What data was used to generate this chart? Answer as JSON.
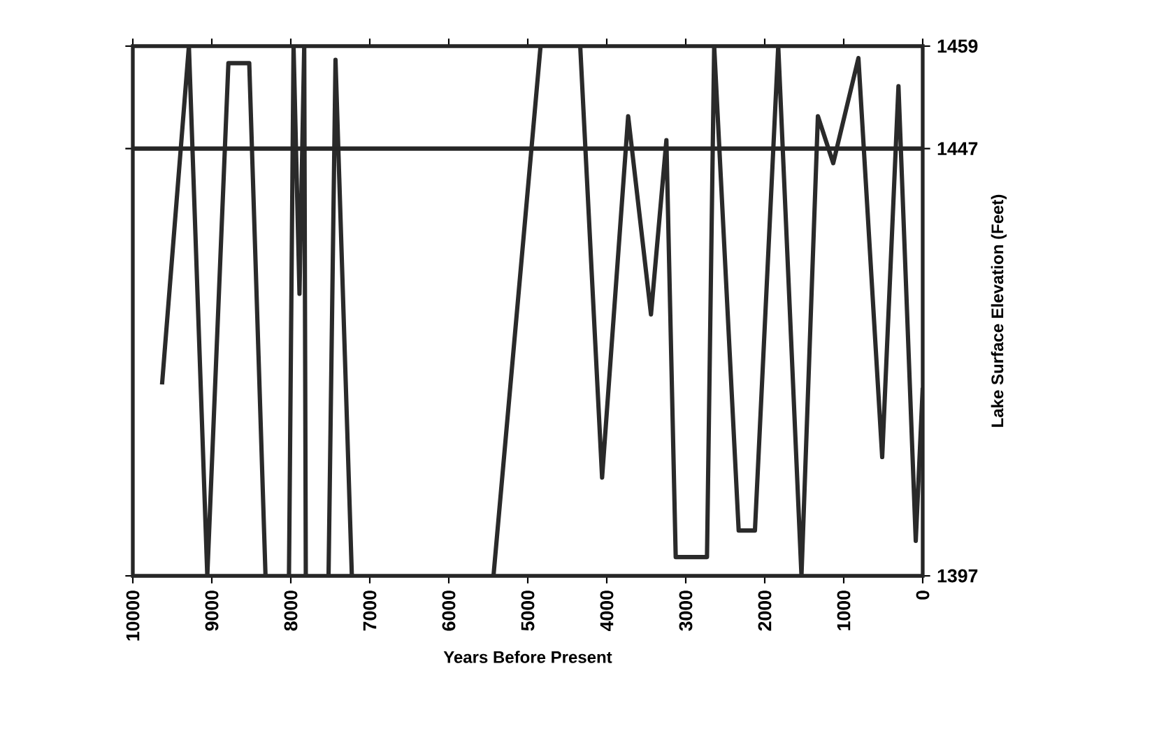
{
  "chart_data": {
    "type": "line",
    "xlabel": "Years Before Present",
    "ylabel": "Lake Surface Elevation (Feet)",
    "x": [
      9630,
      9290,
      9057,
      8790,
      8526,
      8320,
      8170,
      8023,
      7965,
      7890,
      7830,
      7810,
      7660,
      7522,
      7434,
      7227,
      6300,
      5434,
      4838,
      4600,
      4336,
      4059,
      3729,
      3440,
      3245,
      3127,
      2731,
      2640,
      2330,
      2124,
      1829,
      1535,
      1327,
      1133,
      814,
      513,
      307,
      88,
      0
    ],
    "series": [
      {
        "color": "#2a2a2a",
        "values": [
          1419.4,
          1459,
          1397,
          1457,
          1457,
          1397,
          null,
          1397,
          1459,
          1430,
          1459,
          1397,
          null,
          1397,
          1457.4,
          1397,
          null,
          1397,
          1459,
          null,
          1459,
          1408.5,
          1450.8,
          1427.6,
          1448,
          1399.2,
          1399.2,
          1459,
          1402.3,
          1402.3,
          1459,
          1397,
          1450.8,
          1445.3,
          1457.6,
          1410.9,
          1454.3,
          1401.1,
          1419
        ]
      }
    ],
    "xlim": [
      10000,
      0
    ],
    "ylim": [
      1397,
      1459
    ],
    "xticks": [
      10000,
      9000,
      8000,
      7000,
      6000,
      5000,
      4000,
      3000,
      2000,
      1000,
      0
    ],
    "yticks": [
      1397,
      1447,
      1459
    ],
    "ref_lines": [
      {
        "axis": "y",
        "value": 1447
      }
    ],
    "grid": false,
    "marker": "none",
    "line_style": "solid"
  }
}
